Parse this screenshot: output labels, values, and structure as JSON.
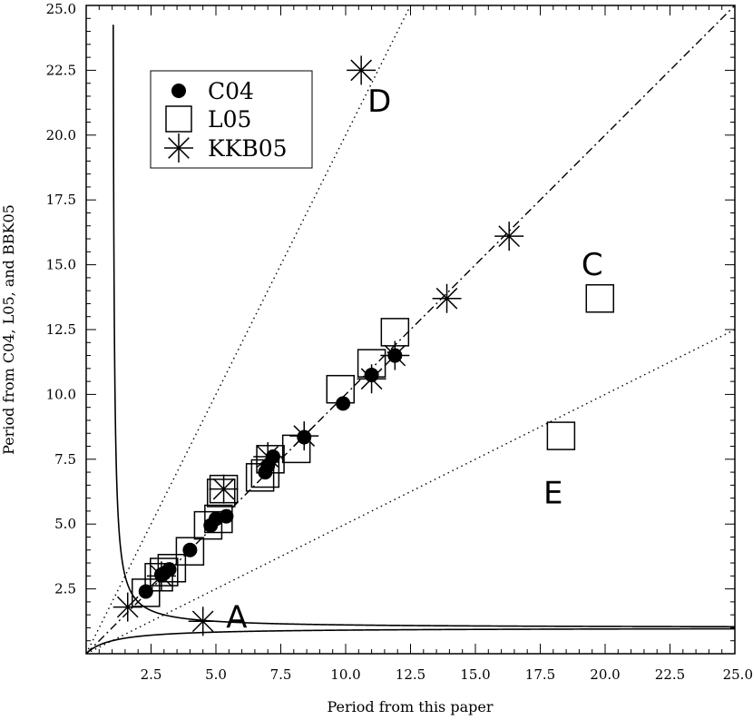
{
  "chart_data": {
    "type": "scatter",
    "xlabel": "Period from this paper",
    "ylabel": "Period from C04, L05, and BBK05",
    "xlim": [
      0,
      25
    ],
    "ylim": [
      0,
      25
    ],
    "x_ticks": [
      "2.5",
      "5.0",
      "7.5",
      "10.0",
      "12.5",
      "15.0",
      "17.5",
      "20.0",
      "22.5",
      "25.0"
    ],
    "y_ticks": [
      "2.5",
      "5.0",
      "7.5",
      "10.0",
      "12.5",
      "15.0",
      "17.5",
      "20.0",
      "22.5",
      "25.0"
    ],
    "legend": {
      "placement": "top-left",
      "entries": [
        {
          "name": "C04",
          "marker": "filled-circle"
        },
        {
          "name": "L05",
          "marker": "open-square"
        },
        {
          "name": "KKB05",
          "marker": "asterisk"
        }
      ]
    },
    "reference_lines": [
      {
        "style": "dash-dot",
        "slope": 1
      },
      {
        "style": "dotted",
        "slope": 2
      },
      {
        "style": "dotted",
        "slope": 0.5
      }
    ],
    "alias_curves": [
      {
        "style": "solid",
        "relation": "1/y = 1 - 1/x"
      },
      {
        "style": "solid",
        "relation": "1/y = 1 + 1/x"
      }
    ],
    "series": [
      {
        "name": "C04",
        "points": [
          [
            2.3,
            2.4
          ],
          [
            2.9,
            3.05
          ],
          [
            3.0,
            3.1
          ],
          [
            3.2,
            3.25
          ],
          [
            4.0,
            4.0
          ],
          [
            4.8,
            4.95
          ],
          [
            5.0,
            5.2
          ],
          [
            5.4,
            5.3
          ],
          [
            6.9,
            7.0
          ],
          [
            7.0,
            7.25
          ],
          [
            7.2,
            7.6
          ],
          [
            8.4,
            8.35
          ],
          [
            9.9,
            9.65
          ],
          [
            11.0,
            10.75
          ],
          [
            11.9,
            11.5
          ]
        ]
      },
      {
        "name": "L05",
        "points": [
          [
            2.3,
            2.35
          ],
          [
            2.8,
            2.95
          ],
          [
            3.0,
            3.15
          ],
          [
            3.3,
            3.3
          ],
          [
            4.0,
            3.95
          ],
          [
            4.7,
            4.95
          ],
          [
            5.1,
            5.2
          ],
          [
            5.2,
            6.2
          ],
          [
            5.3,
            6.35
          ],
          [
            6.7,
            6.8
          ],
          [
            6.9,
            6.95
          ],
          [
            7.1,
            7.5
          ],
          [
            8.1,
            7.9
          ],
          [
            9.8,
            10.2
          ],
          [
            11.0,
            11.2
          ],
          [
            11.9,
            12.4
          ],
          [
            19.8,
            13.7
          ],
          [
            18.3,
            8.4
          ]
        ]
      },
      {
        "name": "KKB05",
        "points": [
          [
            1.6,
            1.8
          ],
          [
            4.5,
            1.25
          ],
          [
            2.9,
            3.0
          ],
          [
            5.3,
            6.35
          ],
          [
            7.0,
            7.6
          ],
          [
            8.4,
            8.4
          ],
          [
            11.0,
            10.6
          ],
          [
            11.9,
            11.5
          ],
          [
            13.9,
            13.7
          ],
          [
            16.3,
            16.1
          ],
          [
            10.6,
            22.5
          ]
        ]
      }
    ],
    "annotations": [
      {
        "text": "A",
        "x": 5.8,
        "y": 1.0
      },
      {
        "text": "C",
        "x": 19.5,
        "y": 14.6
      },
      {
        "text": "D",
        "x": 11.3,
        "y": 20.9
      },
      {
        "text": "E",
        "x": 18.0,
        "y": 5.8
      }
    ]
  }
}
